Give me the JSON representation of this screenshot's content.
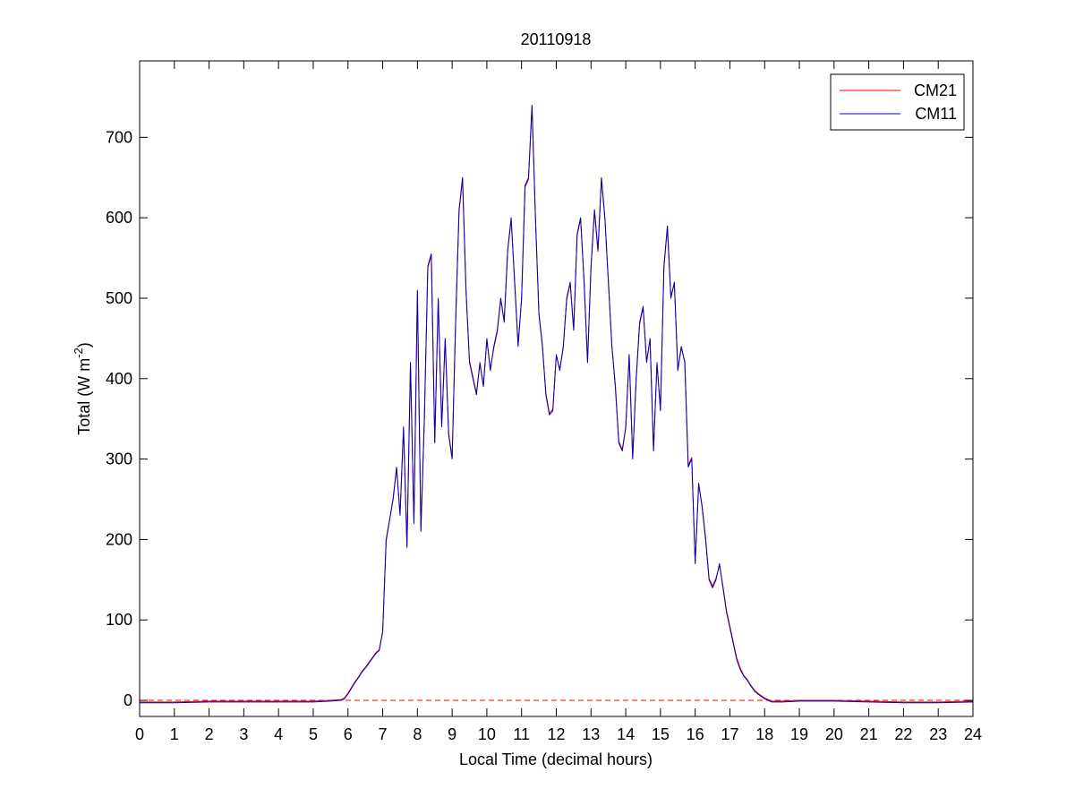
{
  "chart_data": {
    "type": "line",
    "title": "20110918",
    "xlabel": "Local Time (decimal hours)",
    "ylabel": {
      "text": "Total (W m",
      "superscript": "-2",
      "suffix": ")"
    },
    "xlim": [
      0,
      24
    ],
    "ylim": [
      -20,
      795
    ],
    "xticks": [
      0,
      1,
      2,
      3,
      4,
      5,
      6,
      7,
      8,
      9,
      10,
      11,
      12,
      13,
      14,
      15,
      16,
      17,
      18,
      19,
      20,
      21,
      22,
      23,
      24
    ],
    "yticks": [
      0,
      100,
      200,
      300,
      400,
      500,
      600,
      700
    ],
    "grid": false,
    "legend": "northeast",
    "reference_line": {
      "value": 0,
      "color": "#ff0000",
      "style": "dashed"
    },
    "x": [
      0,
      1,
      2,
      3,
      4,
      5,
      5.5,
      5.8,
      5.9,
      6,
      6.1,
      6.2,
      6.3,
      6.4,
      6.5,
      6.6,
      6.7,
      6.8,
      6.9,
      7,
      7.1,
      7.2,
      7.3,
      7.4,
      7.5,
      7.6,
      7.7,
      7.8,
      7.9,
      8,
      8.1,
      8.2,
      8.3,
      8.4,
      8.5,
      8.6,
      8.7,
      8.8,
      8.9,
      9,
      9.1,
      9.2,
      9.3,
      9.4,
      9.5,
      9.6,
      9.7,
      9.8,
      9.9,
      10,
      10.1,
      10.2,
      10.3,
      10.4,
      10.5,
      10.6,
      10.7,
      10.8,
      10.9,
      11,
      11.1,
      11.2,
      11.3,
      11.4,
      11.5,
      11.6,
      11.7,
      11.8,
      11.9,
      12,
      12.1,
      12.2,
      12.3,
      12.4,
      12.5,
      12.6,
      12.7,
      12.8,
      12.9,
      13,
      13.1,
      13.2,
      13.3,
      13.4,
      13.5,
      13.6,
      13.7,
      13.8,
      13.9,
      14,
      14.1,
      14.2,
      14.3,
      14.4,
      14.5,
      14.6,
      14.7,
      14.8,
      14.9,
      15,
      15.1,
      15.2,
      15.3,
      15.4,
      15.5,
      15.6,
      15.7,
      15.8,
      15.9,
      16,
      16.1,
      16.2,
      16.3,
      16.4,
      16.5,
      16.6,
      16.7,
      16.8,
      16.9,
      17,
      17.1,
      17.2,
      17.3,
      17.4,
      17.5,
      17.6,
      17.7,
      17.8,
      17.9,
      18,
      18.1,
      18.2,
      18.5,
      19,
      20,
      21,
      22,
      23,
      24
    ],
    "series": [
      {
        "name": "CM21",
        "color": "#ff0000",
        "values": [
          -2,
          -2,
          -1,
          -1,
          -1,
          -1,
          0,
          1,
          3,
          9,
          16,
          23,
          29,
          36,
          41,
          47,
          53,
          59,
          63,
          86,
          198,
          224,
          251,
          288,
          232,
          338,
          192,
          418,
          222,
          508,
          212,
          348,
          538,
          553,
          322,
          498,
          342,
          448,
          332,
          302,
          468,
          608,
          648,
          508,
          422,
          402,
          382,
          418,
          392,
          448,
          412,
          438,
          458,
          498,
          472,
          558,
          598,
          522,
          442,
          498,
          638,
          648,
          738,
          598,
          482,
          442,
          382,
          357,
          362,
          428,
          412,
          438,
          498,
          518,
          462,
          578,
          598,
          522,
          422,
          538,
          608,
          558,
          648,
          598,
          522,
          442,
          392,
          322,
          312,
          338,
          428,
          302,
          398,
          468,
          488,
          422,
          448,
          312,
          418,
          362,
          538,
          588,
          502,
          518,
          412,
          438,
          422,
          292,
          302,
          172,
          268,
          242,
          202,
          152,
          142,
          152,
          168,
          142,
          112,
          92,
          72,
          52,
          40,
          31,
          26,
          19,
          13,
          9,
          6,
          3,
          1,
          -1,
          -1,
          0,
          0,
          -1,
          -2,
          -2,
          -1
        ]
      },
      {
        "name": "CM11",
        "color": "#0000c0",
        "values": [
          -3,
          -3,
          -2,
          -2,
          -2,
          -2,
          -1,
          0,
          2,
          8,
          15,
          22,
          28,
          35,
          40,
          46,
          52,
          58,
          62,
          85,
          200,
          225,
          250,
          290,
          230,
          340,
          190,
          420,
          220,
          510,
          210,
          350,
          540,
          555,
          320,
          500,
          340,
          450,
          330,
          300,
          470,
          610,
          650,
          510,
          420,
          400,
          380,
          420,
          390,
          450,
          410,
          440,
          460,
          500,
          470,
          560,
          600,
          520,
          440,
          500,
          640,
          650,
          740,
          600,
          480,
          440,
          380,
          355,
          360,
          430,
          410,
          440,
          500,
          520,
          460,
          580,
          600,
          520,
          420,
          540,
          610,
          560,
          650,
          600,
          520,
          440,
          390,
          320,
          310,
          340,
          430,
          300,
          400,
          470,
          490,
          420,
          450,
          310,
          420,
          360,
          540,
          590,
          500,
          520,
          410,
          440,
          420,
          290,
          300,
          170,
          270,
          240,
          200,
          150,
          140,
          150,
          170,
          140,
          110,
          90,
          70,
          50,
          38,
          30,
          25,
          18,
          12,
          8,
          5,
          2,
          0,
          -2,
          -2,
          -1,
          -1,
          -2,
          -3,
          -3,
          -2
        ]
      }
    ]
  }
}
